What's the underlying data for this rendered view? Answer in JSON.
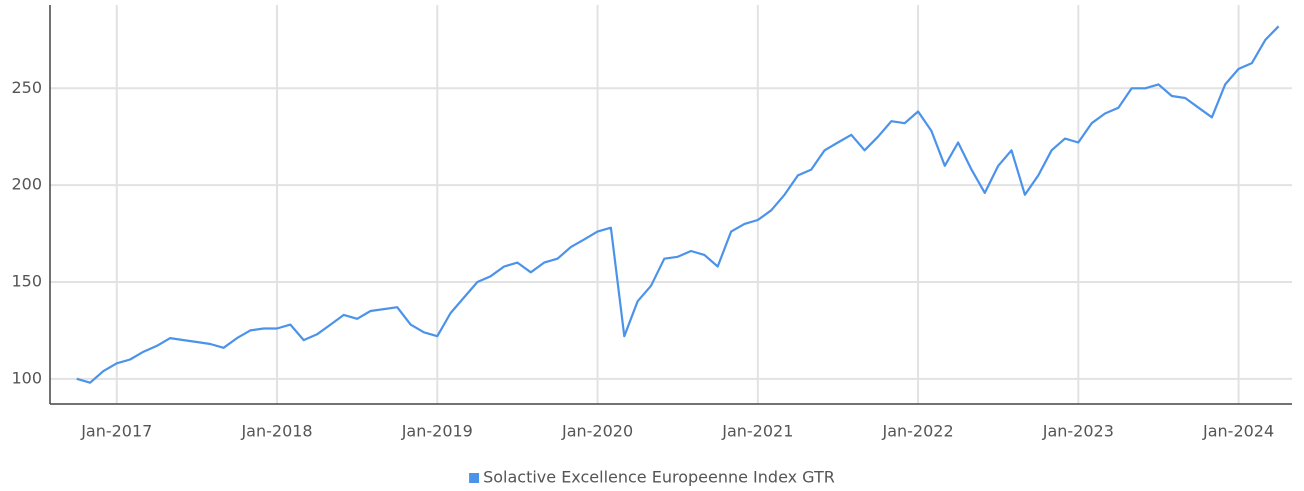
{
  "chart_data": {
    "type": "line",
    "x": [
      "2016-10",
      "2016-11",
      "2016-12",
      "2017-01",
      "2017-02",
      "2017-03",
      "2017-04",
      "2017-05",
      "2017-06",
      "2017-07",
      "2017-08",
      "2017-09",
      "2017-10",
      "2017-11",
      "2017-12",
      "2018-01",
      "2018-02",
      "2018-03",
      "2018-04",
      "2018-05",
      "2018-06",
      "2018-07",
      "2018-08",
      "2018-09",
      "2018-10",
      "2018-11",
      "2018-12",
      "2019-01",
      "2019-02",
      "2019-03",
      "2019-04",
      "2019-05",
      "2019-06",
      "2019-07",
      "2019-08",
      "2019-09",
      "2019-10",
      "2019-11",
      "2019-12",
      "2020-01",
      "2020-02",
      "2020-03",
      "2020-04",
      "2020-05",
      "2020-06",
      "2020-07",
      "2020-08",
      "2020-09",
      "2020-10",
      "2020-11",
      "2020-12",
      "2021-01",
      "2021-02",
      "2021-03",
      "2021-04",
      "2021-05",
      "2021-06",
      "2021-07",
      "2021-08",
      "2021-09",
      "2021-10",
      "2021-11",
      "2021-12",
      "2022-01",
      "2022-02",
      "2022-03",
      "2022-04",
      "2022-05",
      "2022-06",
      "2022-07",
      "2022-08",
      "2022-09",
      "2022-10",
      "2022-11",
      "2022-12",
      "2023-01",
      "2023-02",
      "2023-03",
      "2023-04",
      "2023-05",
      "2023-06",
      "2023-07",
      "2023-08",
      "2023-09",
      "2023-10",
      "2023-11",
      "2023-12",
      "2024-01",
      "2024-02",
      "2024-03",
      "2024-04"
    ],
    "series": [
      {
        "name": "Solactive Excellence Europeenne Index GTR",
        "color": "#4b93ea",
        "values": [
          100,
          98,
          104,
          108,
          110,
          114,
          117,
          121,
          120,
          119,
          118,
          116,
          121,
          125,
          126,
          126,
          128,
          120,
          123,
          128,
          133,
          131,
          135,
          136,
          137,
          128,
          124,
          122,
          134,
          142,
          150,
          153,
          158,
          160,
          155,
          160,
          162,
          168,
          172,
          176,
          178,
          122,
          140,
          148,
          162,
          163,
          166,
          164,
          158,
          176,
          180,
          182,
          187,
          195,
          205,
          208,
          218,
          222,
          226,
          218,
          225,
          233,
          232,
          238,
          228,
          210,
          222,
          208,
          196,
          210,
          218,
          195,
          205,
          218,
          224,
          222,
          232,
          237,
          240,
          250,
          250,
          252,
          246,
          245,
          240,
          235,
          252,
          260,
          263,
          275,
          282
        ]
      }
    ],
    "xlim": [
      "2016-08",
      "2024-05"
    ],
    "xticks": [
      {
        "value": "2017-01",
        "label": "Jan-2017"
      },
      {
        "value": "2018-01",
        "label": "Jan-2018"
      },
      {
        "value": "2019-01",
        "label": "Jan-2019"
      },
      {
        "value": "2020-01",
        "label": "Jan-2020"
      },
      {
        "value": "2021-01",
        "label": "Jan-2021"
      },
      {
        "value": "2022-01",
        "label": "Jan-2022"
      },
      {
        "value": "2023-01",
        "label": "Jan-2023"
      },
      {
        "value": "2024-01",
        "label": "Jan-2024"
      }
    ],
    "ylim": [
      87,
      293
    ],
    "yticks": [
      100,
      150,
      200,
      250
    ],
    "grid": true,
    "legend": "bottom"
  }
}
